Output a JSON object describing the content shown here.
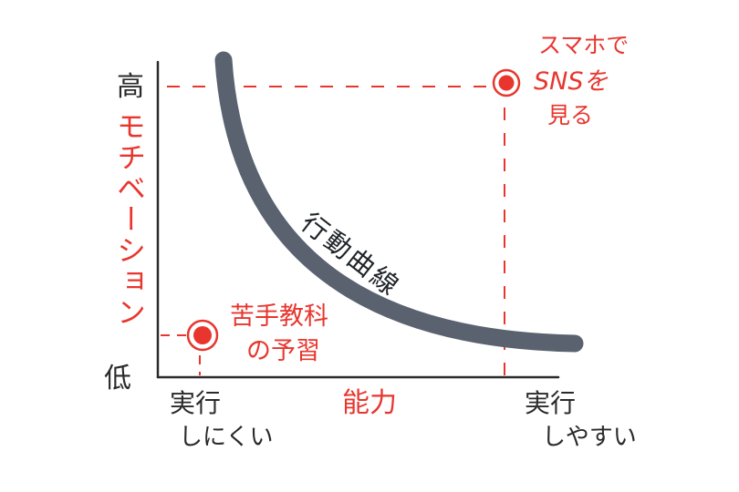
{
  "diagram": {
    "y_axis": {
      "high": "高",
      "low": "低",
      "label": "モチベーション"
    },
    "x_axis": {
      "label": "能力",
      "left": {
        "line1": "実行",
        "line2": "しにくい"
      },
      "right": {
        "line1": "実行",
        "line2": "しやすい"
      }
    },
    "curve_label": "行動曲線",
    "points": {
      "high_point": {
        "line1": "スマホで",
        "line2": "SNSを",
        "line3": "見る",
        "motivation": "high",
        "ability": "easy"
      },
      "low_point": {
        "line1": "苦手教科",
        "line2": "の予習",
        "motivation": "low",
        "ability": "hard"
      }
    },
    "colors": {
      "accent": "#e8362e",
      "ink": "#2a2a2a",
      "curve": "#5a6270"
    }
  }
}
